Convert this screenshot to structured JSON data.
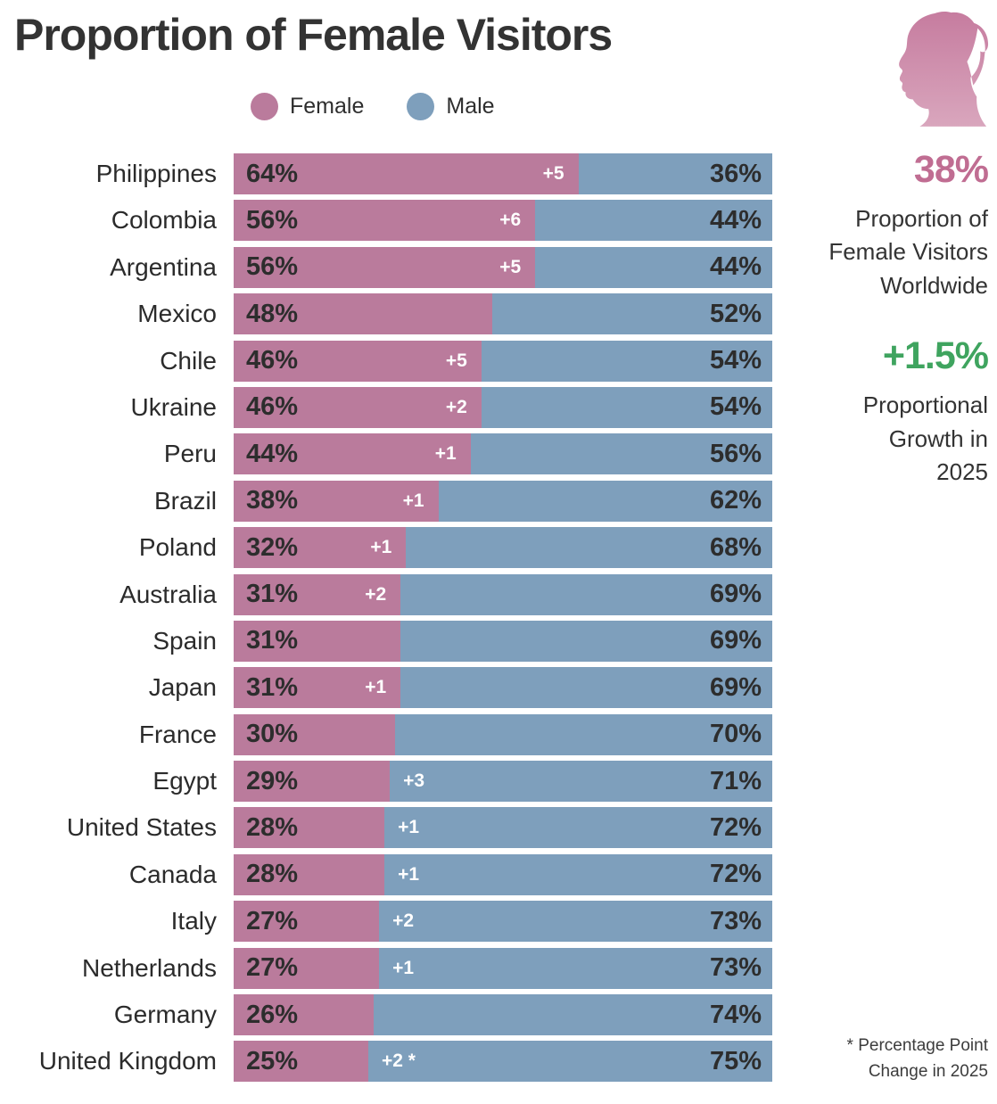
{
  "title": "Proportion of Female Visitors",
  "legend": {
    "female_label": "Female",
    "male_label": "Male"
  },
  "colors": {
    "female": "#ba7b9c",
    "male": "#7e9fbc",
    "accent_pink": "#c06d92",
    "accent_green": "#3fa45f",
    "change_text": "#ffffff",
    "icon_top": "#c67c9f",
    "icon_bottom": "#d9a6bd"
  },
  "sidebar": {
    "stat1_value": "38%",
    "stat1_label": "Proportion of\nFemale Visitors\nWorldwide",
    "stat2_value": "+1.5%",
    "stat2_label": "Proportional\nGrowth in\n2025",
    "footnote": "* Percentage Point\nChange in 2025"
  },
  "chart_data": {
    "type": "bar",
    "orientation": "horizontal",
    "stacked": true,
    "unit": "%",
    "title": "Proportion of Female Visitors",
    "legend_entries": [
      "Female",
      "Male"
    ],
    "xlim": [
      0,
      100
    ],
    "grid": false,
    "categories": [
      "Philippines",
      "Colombia",
      "Argentina",
      "Mexico",
      "Chile",
      "Ukraine",
      "Peru",
      "Brazil",
      "Poland",
      "Australia",
      "Spain",
      "Japan",
      "France",
      "Egypt",
      "United States",
      "Canada",
      "Italy",
      "Netherlands",
      "Germany",
      "United Kingdom"
    ],
    "series": [
      {
        "name": "Female",
        "values": [
          64,
          56,
          56,
          48,
          46,
          46,
          44,
          38,
          32,
          31,
          31,
          31,
          30,
          29,
          28,
          28,
          27,
          27,
          26,
          25
        ]
      },
      {
        "name": "Male",
        "values": [
          36,
          44,
          44,
          52,
          54,
          54,
          56,
          62,
          68,
          69,
          69,
          69,
          70,
          71,
          72,
          72,
          73,
          73,
          74,
          75
        ]
      }
    ],
    "rows": [
      {
        "country": "Philippines",
        "female": 64,
        "male": 36,
        "change": "+5",
        "change_side": "female"
      },
      {
        "country": "Colombia",
        "female": 56,
        "male": 44,
        "change": "+6",
        "change_side": "female"
      },
      {
        "country": "Argentina",
        "female": 56,
        "male": 44,
        "change": "+5",
        "change_side": "female"
      },
      {
        "country": "Mexico",
        "female": 48,
        "male": 52,
        "change": null,
        "change_side": null
      },
      {
        "country": "Chile",
        "female": 46,
        "male": 54,
        "change": "+5",
        "change_side": "female"
      },
      {
        "country": "Ukraine",
        "female": 46,
        "male": 54,
        "change": "+2",
        "change_side": "female"
      },
      {
        "country": "Peru",
        "female": 44,
        "male": 56,
        "change": "+1",
        "change_side": "female"
      },
      {
        "country": "Brazil",
        "female": 38,
        "male": 62,
        "change": "+1",
        "change_side": "female"
      },
      {
        "country": "Poland",
        "female": 32,
        "male": 68,
        "change": "+1",
        "change_side": "female"
      },
      {
        "country": "Australia",
        "female": 31,
        "male": 69,
        "change": "+2",
        "change_side": "female"
      },
      {
        "country": "Spain",
        "female": 31,
        "male": 69,
        "change": null,
        "change_side": null
      },
      {
        "country": "Japan",
        "female": 31,
        "male": 69,
        "change": "+1",
        "change_side": "female"
      },
      {
        "country": "France",
        "female": 30,
        "male": 70,
        "change": null,
        "change_side": null
      },
      {
        "country": "Egypt",
        "female": 29,
        "male": 71,
        "change": "+3",
        "change_side": "male"
      },
      {
        "country": "United States",
        "female": 28,
        "male": 72,
        "change": "+1",
        "change_side": "male"
      },
      {
        "country": "Canada",
        "female": 28,
        "male": 72,
        "change": "+1",
        "change_side": "male"
      },
      {
        "country": "Italy",
        "female": 27,
        "male": 73,
        "change": "+2",
        "change_side": "male"
      },
      {
        "country": "Netherlands",
        "female": 27,
        "male": 73,
        "change": "+1",
        "change_side": "male"
      },
      {
        "country": "Germany",
        "female": 26,
        "male": 74,
        "change": null,
        "change_side": null
      },
      {
        "country": "United Kingdom",
        "female": 25,
        "male": 75,
        "change": "+2 *",
        "change_side": "male"
      }
    ]
  }
}
